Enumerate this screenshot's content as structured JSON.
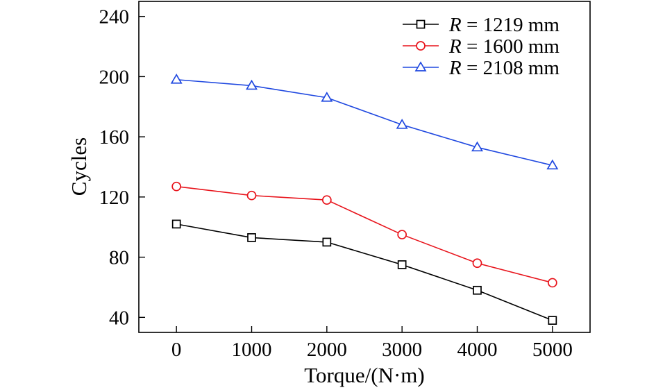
{
  "chart_data": {
    "type": "line",
    "title": "",
    "xlabel": "Torque/(N·m)",
    "ylabel": "Cycles",
    "x": [
      0,
      1000,
      2000,
      3000,
      4000,
      5000
    ],
    "xticks": [
      0,
      1000,
      2000,
      3000,
      4000,
      5000
    ],
    "yticks": [
      40,
      80,
      120,
      160,
      200,
      240
    ],
    "xlim": [
      -500,
      5500
    ],
    "ylim": [
      30,
      250
    ],
    "grid": false,
    "legend_position": "top-right",
    "series": [
      {
        "name": "R = 1219 mm",
        "legend_var": "R",
        "legend_rest": " = 1219 mm",
        "color": "#000000",
        "marker": "square",
        "values": [
          102,
          93,
          90,
          75,
          58,
          38
        ]
      },
      {
        "name": "R = 1600 mm",
        "legend_var": "R",
        "legend_rest": " = 1600 mm",
        "color": "#e8141c",
        "marker": "circle",
        "values": [
          127,
          121,
          118,
          95,
          76,
          63
        ]
      },
      {
        "name": "R = 2108 mm",
        "legend_var": "R",
        "legend_rest": " = 2108 mm",
        "color": "#1f48e0",
        "marker": "triangle",
        "values": [
          198,
          194,
          186,
          168,
          153,
          141
        ]
      }
    ]
  }
}
